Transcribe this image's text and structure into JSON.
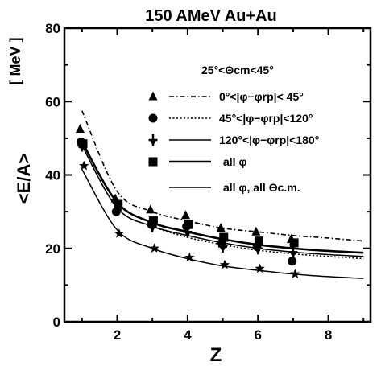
{
  "chart_data": {
    "type": "line",
    "title": "150 AMeV Au+Au",
    "xlabel": "Z",
    "ylabel": "<E/A>",
    "yunit": "[ MeV ]",
    "xlim": [
      0.5,
      9.2
    ],
    "ylim": [
      0,
      80
    ],
    "xticks": [
      2,
      4,
      6,
      8
    ],
    "yticks": [
      0,
      20,
      40,
      60,
      80
    ],
    "grid": false,
    "legend_position": "top-right",
    "cut_label": "25°<Θcm<45°",
    "x": [
      1,
      2,
      3,
      4,
      5,
      6,
      7
    ],
    "series": [
      {
        "name": "0°<|φ−φrp|< 45°",
        "marker": "triangle",
        "line": "dash-dot",
        "values": [
          52.5,
          33.5,
          30.5,
          29,
          25.5,
          24.5,
          22.5
        ],
        "curve": [
          [
            1,
            57.5
          ],
          [
            2,
            35.5
          ],
          [
            3,
            30
          ],
          [
            4,
            27.5
          ],
          [
            5,
            25.5
          ],
          [
            6,
            24.5
          ],
          [
            7,
            23.5
          ],
          [
            8,
            22.8
          ],
          [
            9,
            22
          ]
        ]
      },
      {
        "name": "45°<|φ−φrp|<120°",
        "marker": "circle",
        "line": "dotted",
        "values": [
          49,
          30,
          26.5,
          26,
          21.5,
          20.5,
          16.5
        ],
        "curve": [
          [
            1,
            48
          ],
          [
            2,
            31
          ],
          [
            3,
            26
          ],
          [
            4,
            23
          ],
          [
            5,
            21
          ],
          [
            6,
            19.5
          ],
          [
            7,
            18.5
          ],
          [
            8,
            17.8
          ],
          [
            9,
            17.2
          ]
        ]
      },
      {
        "name": "120°<|φ−φrp|<180°",
        "marker": "cross",
        "line": "solid",
        "values": [
          48,
          30.5,
          26,
          24.5,
          20.5,
          20,
          19
        ],
        "curve": [
          [
            1,
            48
          ],
          [
            2,
            31
          ],
          [
            3,
            26
          ],
          [
            4,
            23.5
          ],
          [
            5,
            21.5
          ],
          [
            6,
            20
          ],
          [
            7,
            19
          ],
          [
            8,
            18.3
          ],
          [
            9,
            17.8
          ]
        ]
      },
      {
        "name": "all φ",
        "marker": "square",
        "line": "solid-thick",
        "values": [
          48.5,
          32,
          27.5,
          26.5,
          23,
          22,
          21.5
        ],
        "curve": [
          [
            1,
            49
          ],
          [
            2,
            32.5
          ],
          [
            3,
            27
          ],
          [
            4,
            24.5
          ],
          [
            5,
            22.5
          ],
          [
            6,
            21
          ],
          [
            7,
            20
          ],
          [
            8,
            19.3
          ],
          [
            9,
            18.8
          ]
        ]
      },
      {
        "name": "all φ,  all Θc.m.",
        "marker": "star",
        "line": "solid",
        "values": [
          42.5,
          24,
          20,
          17.5,
          15.5,
          14.5,
          13
        ],
        "curve": [
          [
            1,
            41.5
          ],
          [
            2,
            25
          ],
          [
            3,
            20
          ],
          [
            4,
            17.2
          ],
          [
            5,
            15.2
          ],
          [
            6,
            14
          ],
          [
            7,
            13
          ],
          [
            8,
            12.3
          ],
          [
            9,
            11.8
          ]
        ]
      }
    ]
  }
}
